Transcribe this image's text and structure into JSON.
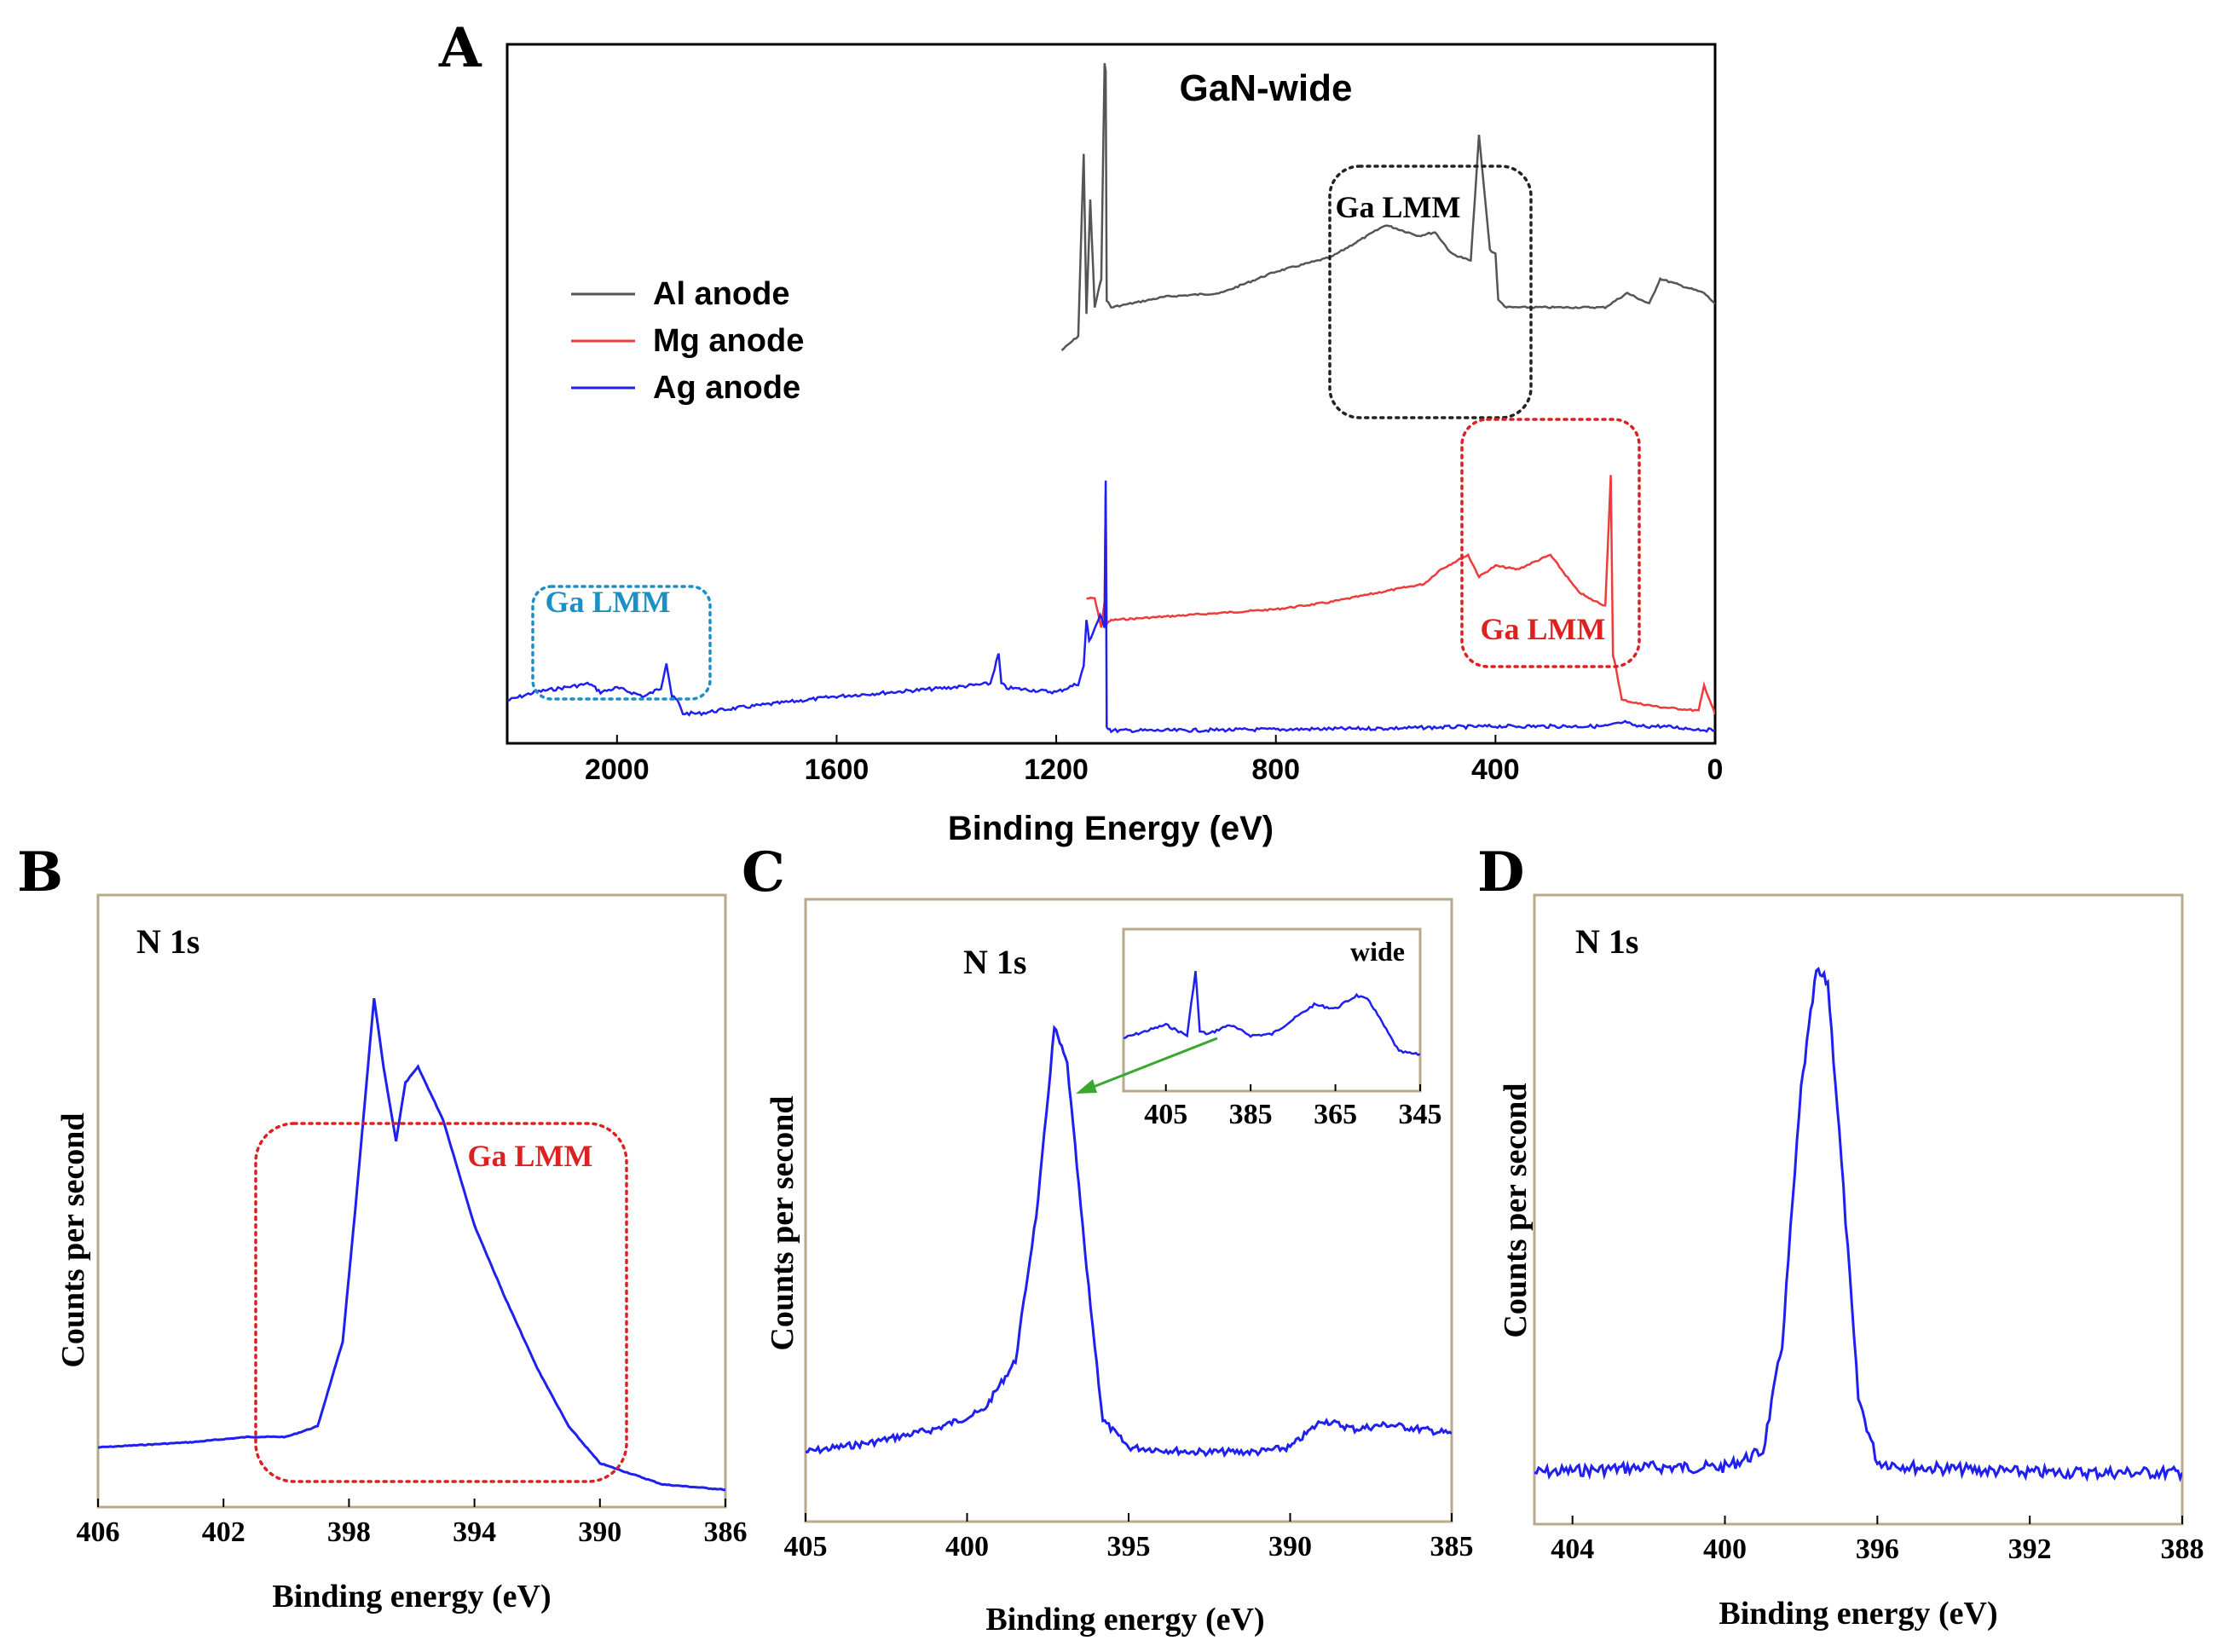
{
  "panels": {
    "A": "A",
    "B": "B",
    "C": "C",
    "D": "D"
  },
  "colors": {
    "al": "#555555",
    "mg": "#ee3b3b",
    "ag": "#2020ee",
    "cyan": "#1e8fc4",
    "red_box": "#dd2020",
    "frame": "#b9a88a",
    "arrow": "#3aa830"
  },
  "chart_data": [
    {
      "id": "A",
      "type": "line",
      "title": "GaN-wide",
      "xlabel": "Binding Energy (eV)",
      "ylabel": "",
      "xlim": [
        2200,
        0
      ],
      "xticks": [
        "2000",
        "1600",
        "1200",
        "800",
        "400",
        "0"
      ],
      "legend": [
        "Al anode",
        "Mg anode",
        "Ag anode"
      ],
      "series": [
        {
          "name": "Al anode",
          "x": [
            1190,
            1160,
            1150,
            1145,
            1138,
            1130,
            1118,
            1112,
            1110,
            1108,
            1100,
            1000,
            900,
            800,
            700,
            600,
            580,
            540,
            510,
            480,
            445,
            430,
            410,
            400,
            395,
            380,
            300,
            200,
            160,
            120,
            100,
            20,
            0
          ],
          "y": [
            20,
            24,
            75,
            30,
            62,
            32,
            40,
            100,
            98,
            34,
            32,
            35,
            36,
            42,
            46,
            55,
            54,
            52,
            53,
            47,
            45,
            80,
            48,
            47,
            34,
            32,
            32,
            32,
            36,
            33,
            40,
            36,
            33
          ]
        },
        {
          "name": "Mg anode",
          "x": [
            1145,
            1130,
            1118,
            1112,
            1110,
            1108,
            1100,
            1000,
            900,
            800,
            700,
            600,
            530,
            500,
            450,
            430,
            400,
            360,
            300,
            280,
            250,
            230,
            200,
            190,
            186,
            182,
            170,
            140,
            100,
            30,
            20,
            0
          ],
          "y": [
            36,
            36,
            28,
            35,
            65,
            29,
            30,
            31,
            32,
            33,
            35,
            38,
            40,
            44,
            48,
            42,
            45,
            44,
            48,
            44,
            38,
            36,
            34,
            70,
            20,
            18,
            8,
            7,
            6,
            5,
            12,
            4
          ]
        },
        {
          "name": "Ag anode",
          "x": [
            2200,
            2150,
            2100,
            2050,
            2030,
            2000,
            1950,
            1920,
            1910,
            1900,
            1890,
            1880,
            1850,
            1800,
            1600,
            1400,
            1320,
            1305,
            1300,
            1290,
            1200,
            1160,
            1150,
            1145,
            1140,
            1120,
            1112,
            1110,
            1108,
            1100,
            1000,
            600,
            400,
            200,
            160,
            150,
            100,
            0
          ],
          "y": [
            8,
            10,
            11,
            12,
            10,
            11,
            9,
            11,
            17,
            9,
            8,
            5,
            5,
            6,
            9,
            11,
            12,
            19,
            12,
            11,
            10,
            12,
            16,
            27,
            22,
            28,
            25,
            60,
            2,
            1,
            1,
            1.5,
            2,
            2,
            3,
            2,
            2,
            1
          ]
        }
      ],
      "annotations": [
        "Ga LMM",
        "Ga LMM",
        "Ga LMM"
      ]
    },
    {
      "id": "B",
      "type": "line",
      "label": "N 1s",
      "xlabel": "Binding energy (eV)",
      "ylabel": "Counts per second",
      "xlim": [
        406,
        386
      ],
      "xticks": [
        "406",
        "402",
        "398",
        "394",
        "390",
        "386"
      ],
      "annotation": "Ga LMM",
      "x": [
        406,
        403,
        401.2,
        400.0,
        399.0,
        398.2,
        397.8,
        397.2,
        396.9,
        396.5,
        396.2,
        395.8,
        395.0,
        394.0,
        393.0,
        392.0,
        391.0,
        390.0,
        388.0,
        386.0
      ],
      "y": [
        10,
        11,
        12,
        12,
        14,
        30,
        55,
        95,
        82,
        68,
        79,
        82,
        72,
        52,
        38,
        25,
        14,
        7,
        3,
        2
      ]
    },
    {
      "id": "C",
      "type": "line",
      "label": "N 1s",
      "xlabel": "Binding energy (eV)",
      "ylabel": "Counts per second",
      "xlim": [
        405,
        385
      ],
      "xticks": [
        "405",
        "400",
        "395",
        "390",
        "385"
      ],
      "x": [
        405,
        403,
        401,
        399.5,
        398.5,
        397.8,
        397.3,
        396.9,
        396.3,
        395.8,
        395,
        393,
        391,
        390,
        389,
        388,
        387,
        386,
        385
      ],
      "y": [
        5,
        7,
        10,
        14,
        25,
        60,
        98,
        90,
        45,
        12,
        6,
        5,
        5,
        6,
        12,
        10,
        11,
        10,
        9
      ],
      "inset": {
        "label": "wide",
        "xlim": [
          415,
          345
        ],
        "xticks": [
          "405",
          "385",
          "365",
          "345"
        ],
        "x": [
          415,
          405,
          400,
          398,
          397,
          395,
          390,
          385,
          380,
          370,
          365,
          360,
          357,
          350,
          346,
          345
        ],
        "y": [
          30,
          40,
          32,
          80,
          35,
          33,
          40,
          32,
          33,
          55,
          52,
          62,
          58,
          20,
          18,
          18
        ]
      }
    },
    {
      "id": "D",
      "type": "line",
      "label": "N 1s",
      "xlabel": "Binding energy (eV)",
      "ylabel": "Counts per second",
      "xlim": [
        405,
        388
      ],
      "xticks": [
        "404",
        "400",
        "396",
        "392",
        "388"
      ],
      "x": [
        405,
        402,
        400,
        399,
        398.5,
        398.0,
        397.6,
        397.3,
        397.0,
        396.5,
        396.0,
        395.0,
        392.0,
        390.0,
        388.0
      ],
      "y": [
        6,
        7,
        7,
        10,
        30,
        78,
        100,
        98,
        70,
        20,
        8,
        7,
        6,
        6,
        6
      ]
    }
  ]
}
